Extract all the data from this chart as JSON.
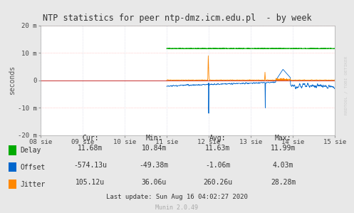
{
  "title": "NTP statistics for peer ntp-dmz.icm.edu.pl  - by week",
  "ylabel": "seconds",
  "background_color": "#e8e8e8",
  "plot_bg_color": "#ffffff",
  "grid_color_h": "#ffaaaa",
  "grid_color_v": "#ccccdd",
  "ylim": [
    -0.02,
    0.02
  ],
  "yticks": [
    -0.02,
    -0.01,
    0,
    0.01,
    0.02
  ],
  "ytick_labels": [
    "-20 m",
    "-10 m",
    "0",
    "10 m",
    "20 m"
  ],
  "xtick_labels": [
    "08 sie",
    "09 sie",
    "10 sie",
    "11 sie",
    "12 sie",
    "13 sie",
    "14 sie",
    "15 sie"
  ],
  "delay_color": "#00aa00",
  "offset_color": "#0066cc",
  "jitter_color": "#ff8800",
  "zero_line_color": "#cc4444",
  "watermark": "RRDTOOL / TOBI OETIKER",
  "legend_items": [
    "Delay",
    "Offset",
    "Jitter"
  ],
  "stats_header": [
    "Cur:",
    "Min:",
    "Avg:",
    "Max:"
  ],
  "stats_delay": [
    "11.68m",
    "10.84m",
    "11.63m",
    "11.99m"
  ],
  "stats_offset": [
    "-574.13u",
    "-49.38m",
    "-1.06m",
    "4.03m"
  ],
  "stats_jitter": [
    "105.12u",
    "36.06u",
    "260.26u",
    "28.28m"
  ],
  "last_update": "Last update: Sun Aug 16 04:02:27 2020",
  "munin_version": "Munin 2.0.49"
}
